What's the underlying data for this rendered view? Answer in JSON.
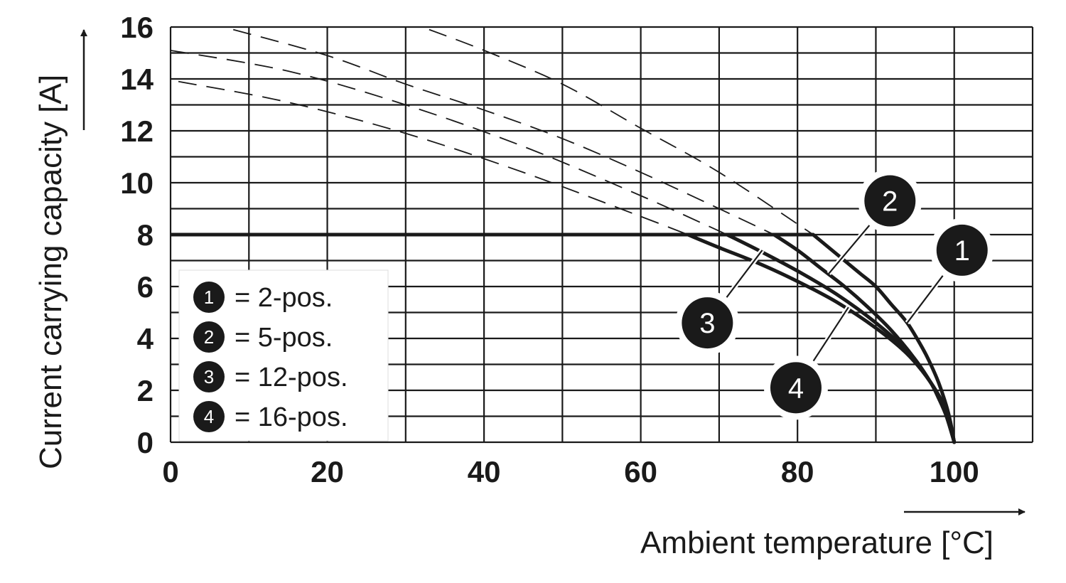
{
  "chart_data": {
    "type": "line",
    "xlabel": "Ambient temperature [°C]",
    "ylabel": "Current carrying capacity [A]",
    "xlim": [
      0,
      110
    ],
    "ylim": [
      0,
      16
    ],
    "x_ticks": [
      0,
      20,
      40,
      60,
      80,
      100
    ],
    "y_ticks": [
      0,
      2,
      4,
      6,
      8,
      10,
      12,
      14,
      16
    ],
    "x_gridlines": [
      0,
      10,
      20,
      30,
      40,
      50,
      60,
      70,
      80,
      90,
      100,
      110
    ],
    "y_gridlines": [
      0,
      1,
      2,
      3,
      4,
      5,
      6,
      7,
      8,
      9,
      10,
      11,
      12,
      13,
      14,
      15,
      16
    ],
    "grid": true,
    "legend_position": "bottom-left",
    "limit_line": {
      "y": 8,
      "x": [
        0,
        82
      ]
    },
    "series": [
      {
        "badge": "1",
        "legend_label": "= 2-pos.",
        "x": [
          82,
          84,
          86,
          88,
          90,
          92,
          94,
          96,
          97,
          98,
          99,
          99.5,
          100
        ],
        "y": [
          8.0,
          7.5,
          7.0,
          6.5,
          6.0,
          5.3,
          4.6,
          3.6,
          3.0,
          2.3,
          1.4,
          0.8,
          0.0
        ]
      },
      {
        "badge": "2",
        "legend_label": "= 5-pos.",
        "x": [
          77,
          80,
          83,
          86,
          89,
          92,
          95,
          97,
          98,
          99,
          100
        ],
        "y": [
          8.0,
          7.4,
          6.7,
          6.0,
          5.2,
          4.3,
          3.2,
          2.3,
          1.7,
          1.0,
          0.0
        ]
      },
      {
        "badge": "3",
        "legend_label": "= 12-pos.",
        "x": [
          71,
          75,
          80,
          85,
          90,
          94,
          97,
          99,
          100
        ],
        "y": [
          8.0,
          7.4,
          6.6,
          5.7,
          4.6,
          3.5,
          2.3,
          1.2,
          0.0
        ]
      },
      {
        "badge": "4",
        "legend_label": "= 16-pos.",
        "x": [
          66,
          70,
          75,
          80,
          85,
          90,
          94,
          97,
          99,
          100
        ],
        "y": [
          8.0,
          7.5,
          6.9,
          6.2,
          5.4,
          4.4,
          3.4,
          2.3,
          1.2,
          0.0
        ]
      }
    ],
    "dashed_curves": [
      {
        "x": [
          8,
          20,
          30,
          40,
          50,
          60,
          70,
          77
        ],
        "y": [
          15.9,
          14.9,
          13.8,
          12.8,
          11.7,
          10.4,
          9.0,
          8.0
        ]
      },
      {
        "x": [
          0,
          15,
          30,
          45,
          60,
          71
        ],
        "y": [
          15.1,
          14.3,
          13.0,
          11.4,
          9.5,
          8.0
        ]
      },
      {
        "x": [
          33,
          40,
          50,
          60,
          70,
          82
        ],
        "y": [
          15.9,
          15.1,
          13.8,
          12.1,
          10.4,
          8.0
        ]
      },
      {
        "x": [
          1,
          15,
          30,
          45,
          60,
          66
        ],
        "y": [
          13.9,
          13.1,
          11.9,
          10.4,
          8.7,
          8.0
        ]
      }
    ],
    "badges": [
      {
        "label": "1",
        "x": 101,
        "y": 7.4,
        "leader_to": {
          "x": 94,
          "y": 4.6
        }
      },
      {
        "label": "2",
        "x": 91.8,
        "y": 9.3,
        "leader_to": {
          "x": 84,
          "y": 6.5
        }
      },
      {
        "label": "3",
        "x": 68.5,
        "y": 4.6,
        "leader_to": {
          "x": 75.5,
          "y": 7.4
        }
      },
      {
        "label": "4",
        "x": 79.8,
        "y": 2.1,
        "leader_to": {
          "x": 86.5,
          "y": 5.2
        }
      }
    ]
  }
}
